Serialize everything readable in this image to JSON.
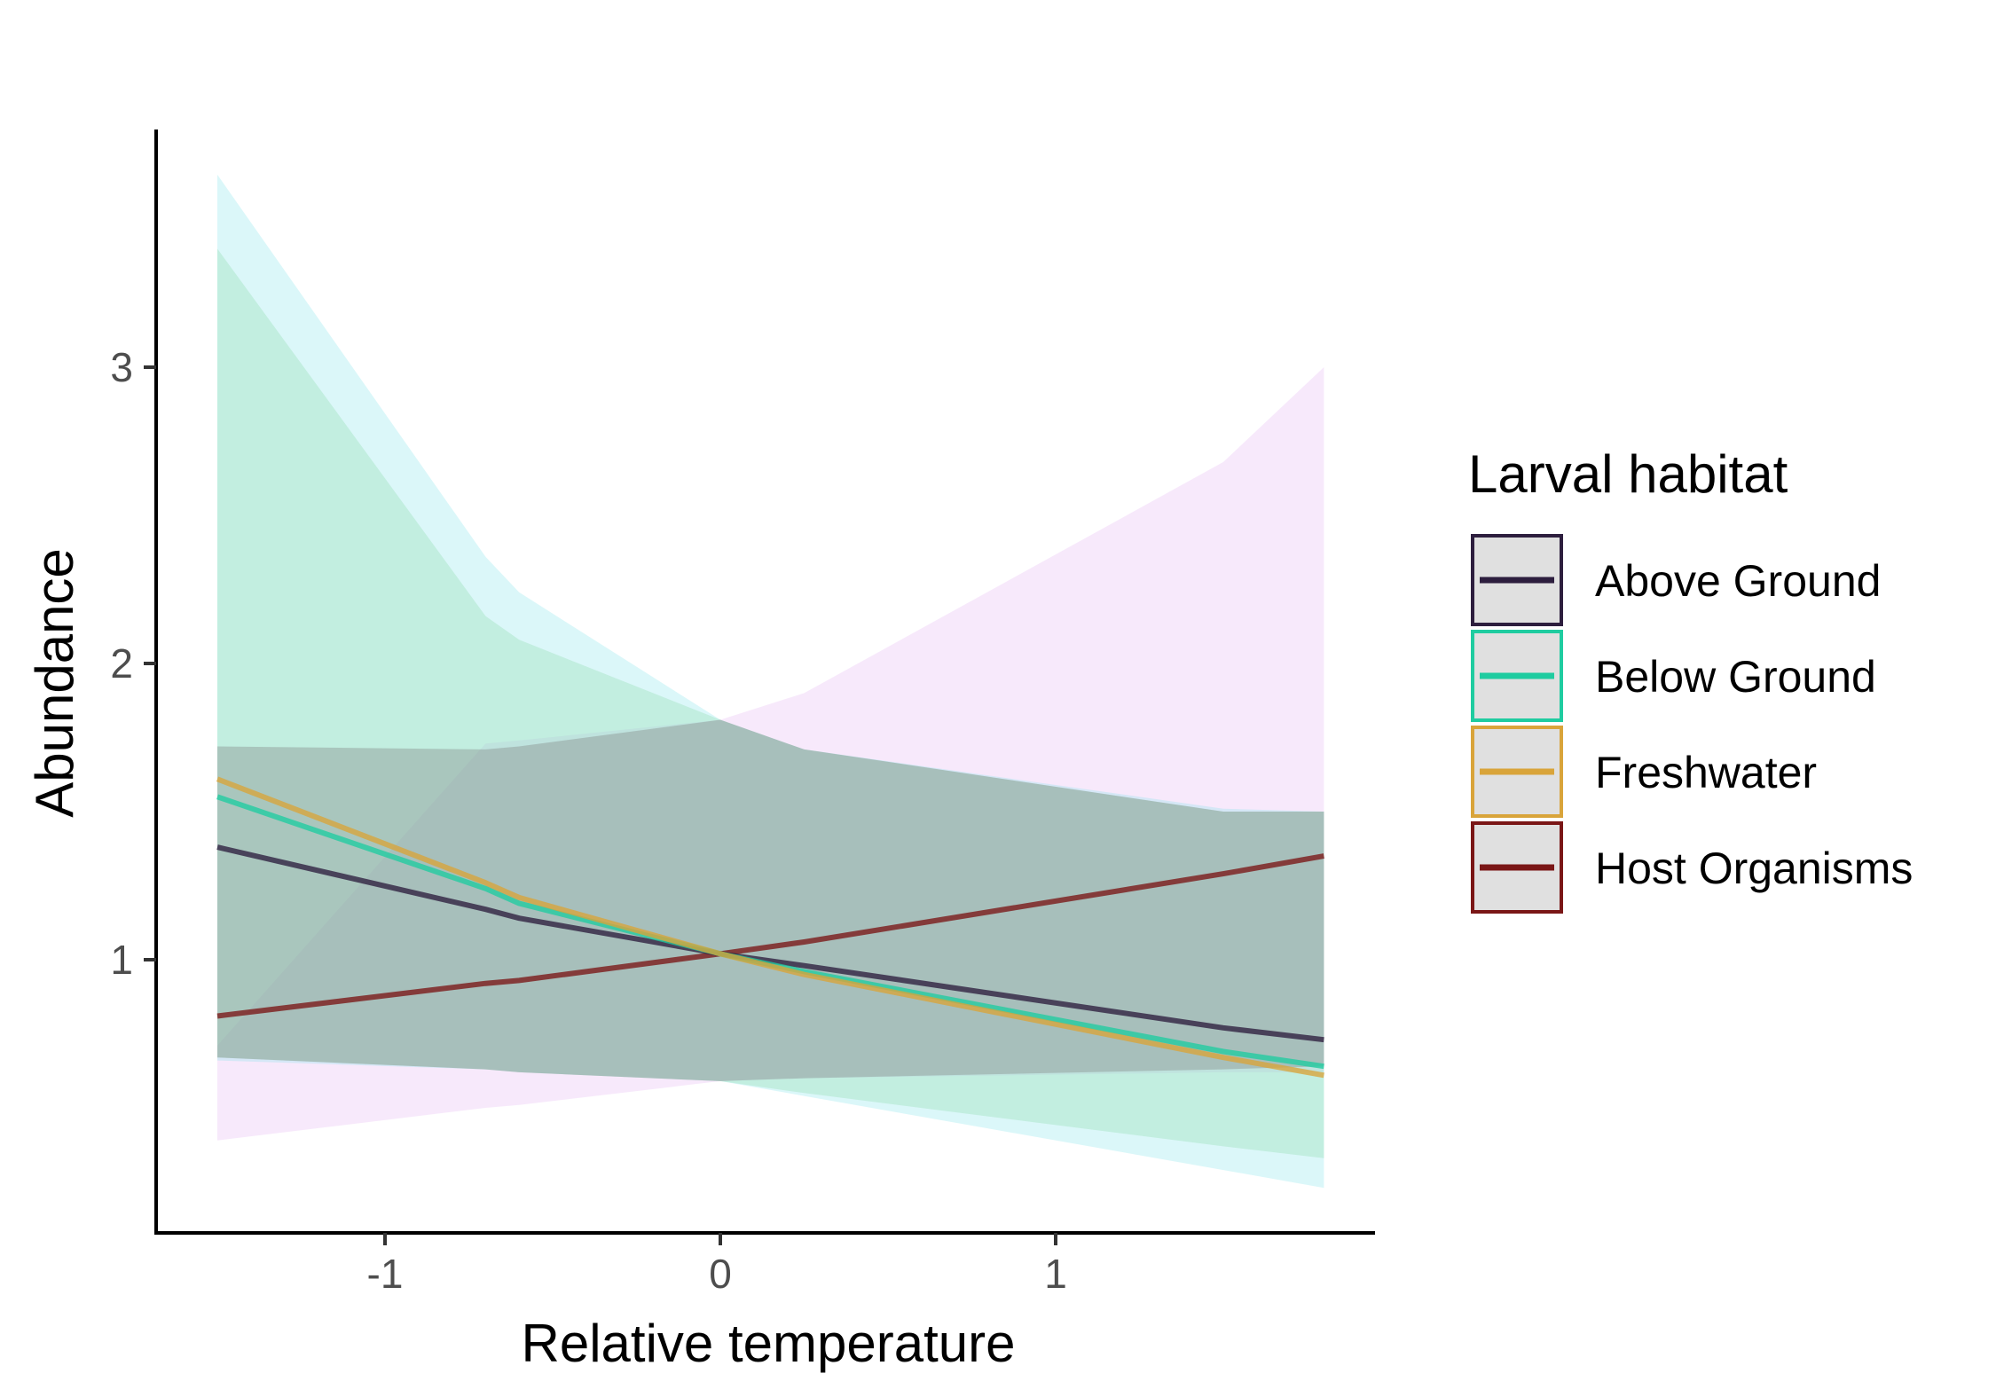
{
  "chart_data": {
    "type": "line",
    "title": "",
    "xlabel": "Relative temperature",
    "ylabel": "Abundance",
    "xlim": [
      -1.7,
      1.95
    ],
    "ylim": [
      0.12,
      3.85
    ],
    "xticks": [
      -1,
      0,
      1
    ],
    "xtick_labels": [
      "-1",
      "0",
      "1"
    ],
    "yticks": [
      1,
      2,
      3
    ],
    "ytick_labels": [
      "1",
      "2",
      "3"
    ],
    "grid": false,
    "legend": {
      "title": "Larval habitat",
      "position": "right"
    },
    "x": [
      -1.5,
      -0.7,
      -0.6,
      0.0,
      0.25,
      1.5,
      1.8
    ],
    "series": [
      {
        "name": "Above Ground",
        "line_color": "#2d1e3e",
        "fill_color": "#7a7a7a",
        "fill_opacity": 0.35,
        "y": [
          1.38,
          1.17,
          1.14,
          1.02,
          0.98,
          0.77,
          0.73
        ],
        "lower": [
          0.67,
          0.63,
          0.62,
          0.59,
          0.6,
          0.63,
          0.64
        ],
        "upper": [
          1.72,
          1.71,
          1.72,
          1.81,
          1.71,
          1.5,
          1.5
        ]
      },
      {
        "name": "Below Ground",
        "line_color": "#1fcca0",
        "fill_color": "#7ee3e8",
        "fill_opacity": 0.28,
        "y": [
          1.55,
          1.24,
          1.19,
          1.02,
          0.96,
          0.69,
          0.64
        ],
        "lower": [
          0.66,
          0.63,
          0.62,
          0.59,
          0.54,
          0.29,
          0.23
        ],
        "upper": [
          3.65,
          2.36,
          2.24,
          1.81,
          1.71,
          1.51,
          1.5
        ]
      },
      {
        "name": "Freshwater",
        "line_color": "#d9a43a",
        "fill_color": "#9fdc9f",
        "fill_opacity": 0.35,
        "y": [
          1.61,
          1.26,
          1.21,
          1.02,
          0.95,
          0.67,
          0.61
        ],
        "lower": [
          0.67,
          0.63,
          0.62,
          0.59,
          0.55,
          0.37,
          0.33
        ],
        "upper": [
          3.4,
          2.16,
          2.08,
          1.81,
          1.71,
          1.5,
          1.5
        ]
      },
      {
        "name": "Host Organisms",
        "line_color": "#7a1616",
        "fill_color": "#ecc7f5",
        "fill_opacity": 0.4,
        "y": [
          0.81,
          0.92,
          0.93,
          1.02,
          1.06,
          1.29,
          1.35
        ],
        "lower": [
          0.39,
          0.5,
          0.51,
          0.59,
          0.6,
          0.62,
          0.62
        ],
        "upper": [
          0.71,
          1.73,
          1.74,
          1.81,
          1.9,
          2.68,
          3.0
        ]
      }
    ]
  }
}
